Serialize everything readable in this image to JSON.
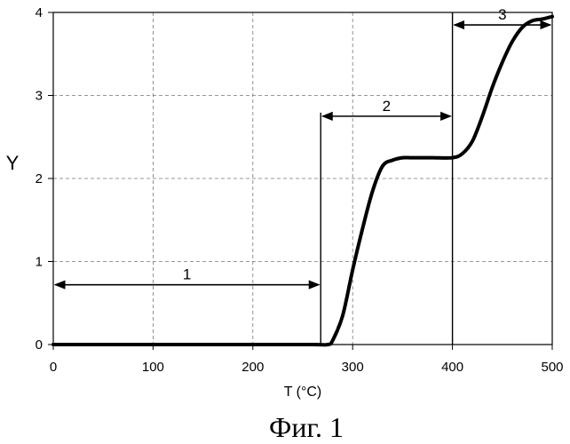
{
  "figure": {
    "caption": "Фиг. 1"
  },
  "chart_data": {
    "type": "line",
    "title": "",
    "xlabel": "T (°C)",
    "ylabel": "Y",
    "xlim": [
      0,
      500
    ],
    "ylim": [
      0,
      4
    ],
    "x_ticks": [
      0,
      100,
      200,
      300,
      400,
      500
    ],
    "y_ticks": [
      0,
      1,
      2,
      3,
      4
    ],
    "grid": true,
    "series": [
      {
        "x": [
          0,
          100,
          200,
          260,
          275,
          280,
          290,
          300,
          310,
          320,
          330,
          340,
          350,
          360,
          380,
          400,
          410,
          420,
          430,
          440,
          450,
          460,
          470,
          480,
          490,
          500
        ],
        "values": [
          0,
          0,
          0,
          0,
          0,
          0.05,
          0.35,
          0.9,
          1.4,
          1.85,
          2.15,
          2.22,
          2.25,
          2.25,
          2.25,
          2.25,
          2.3,
          2.45,
          2.75,
          3.1,
          3.4,
          3.65,
          3.82,
          3.9,
          3.92,
          3.95
        ]
      }
    ],
    "vertical_markers": [
      268,
      400
    ],
    "annotations": [
      {
        "label": "1",
        "x_start": 0,
        "x_end": 268,
        "y": 0.72
      },
      {
        "label": "2",
        "x_start": 268,
        "x_end": 400,
        "y": 2.75
      },
      {
        "label": "3",
        "x_start": 400,
        "x_end": 500,
        "y": 3.85
      }
    ]
  }
}
